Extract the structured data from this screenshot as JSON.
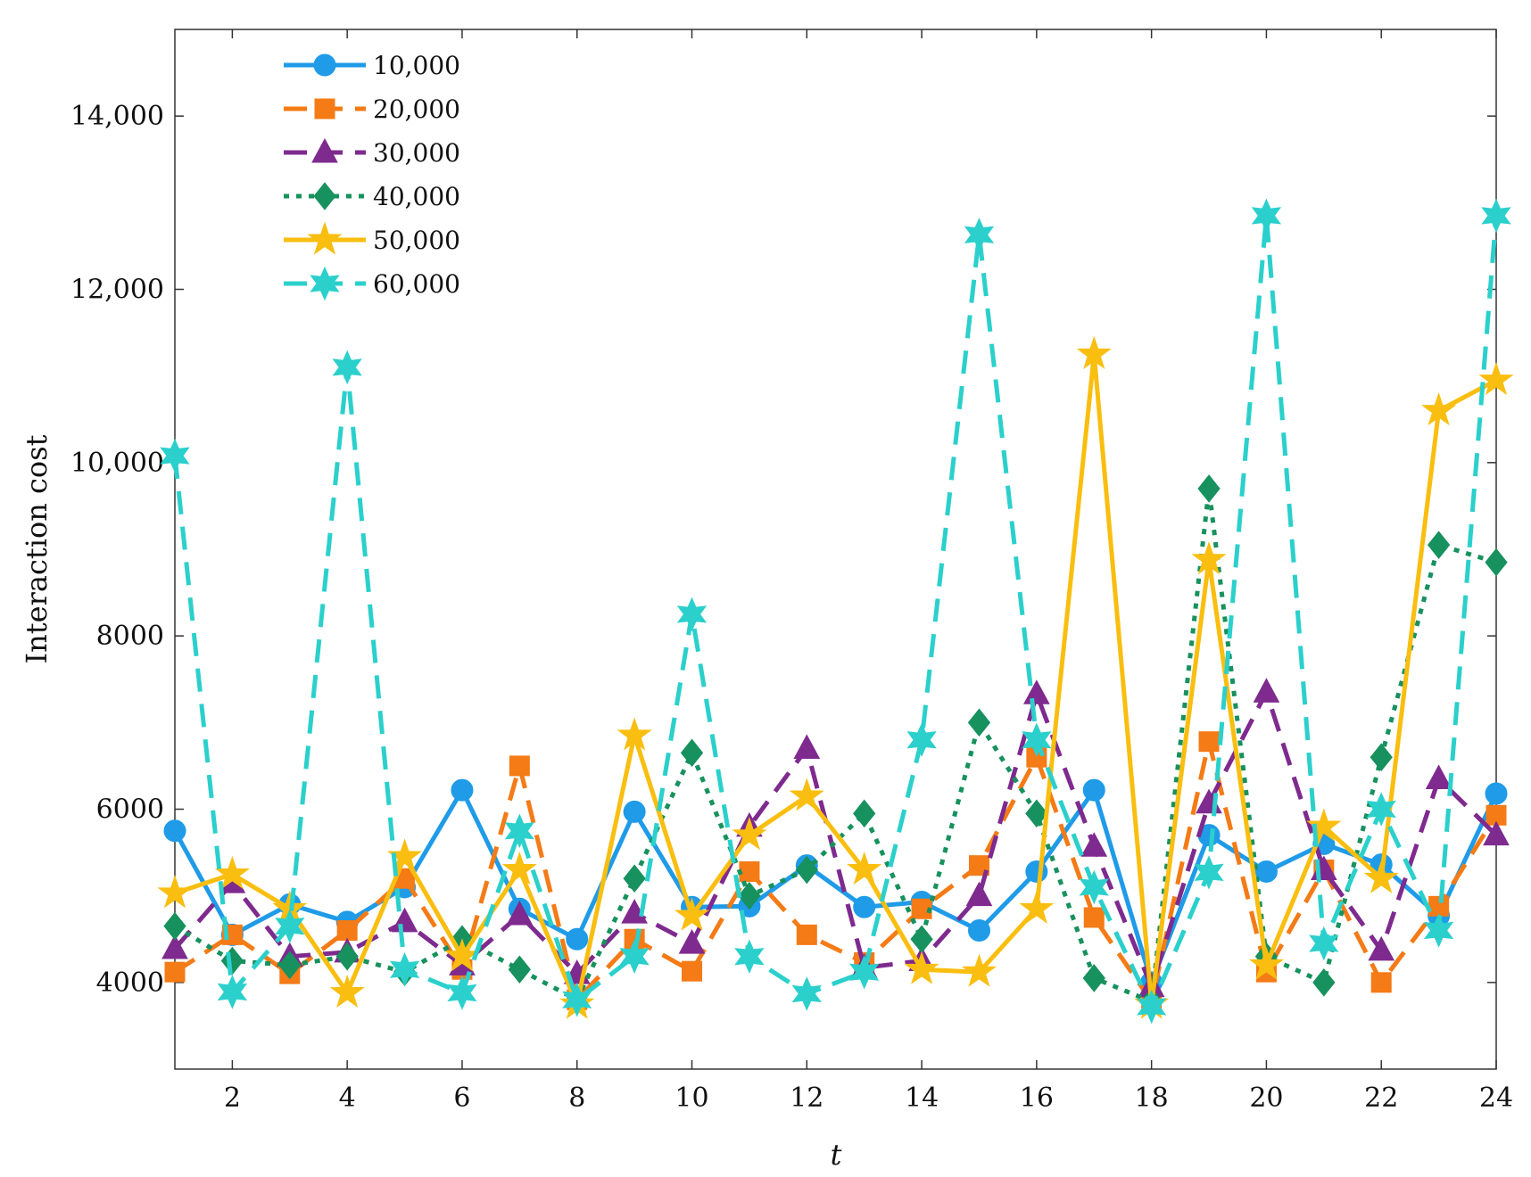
{
  "chart_data": {
    "type": "line",
    "title": "",
    "xlabel": "t",
    "ylabel": "Interaction cost",
    "x": [
      1,
      2,
      3,
      4,
      5,
      6,
      7,
      8,
      9,
      10,
      11,
      12,
      13,
      14,
      15,
      16,
      17,
      18,
      19,
      20,
      21,
      22,
      23,
      24
    ],
    "xlim": [
      1,
      24
    ],
    "ylim": [
      3000,
      15000
    ],
    "xticks": [
      2,
      4,
      6,
      8,
      10,
      12,
      14,
      16,
      18,
      20,
      22,
      24
    ],
    "xtick_labels": [
      "2",
      "4",
      "6",
      "8",
      "10",
      "12",
      "14",
      "16",
      "18",
      "20",
      "22",
      "24"
    ],
    "yticks": [
      4000,
      6000,
      8000,
      10000,
      12000,
      14000
    ],
    "ytick_labels": [
      "4000",
      "6000",
      "8000",
      "10,000",
      "12,000",
      "14,000"
    ],
    "grid": false,
    "legend_position": "top-left",
    "series": [
      {
        "name": "10,000",
        "color": "#1f9be8",
        "dash": "solid",
        "marker": "circle",
        "values": [
          5750,
          4550,
          4900,
          4700,
          5100,
          6220,
          4850,
          4500,
          5970,
          4870,
          4880,
          5350,
          4870,
          4930,
          4600,
          5280,
          6220,
          4000,
          5700,
          5280,
          5600,
          5360,
          4770,
          6180
        ]
      },
      {
        "name": "20,000",
        "color": "#f47b16",
        "dash": "dashed",
        "marker": "square",
        "values": [
          4120,
          4550,
          4100,
          4600,
          5200,
          4150,
          6500,
          3800,
          4500,
          4130,
          5280,
          4550,
          4230,
          4850,
          5350,
          6600,
          4750,
          3780,
          6780,
          4120,
          5300,
          4000,
          4880,
          5930
        ]
      },
      {
        "name": "30,000",
        "color": "#7e2a8e",
        "dash": "dashed",
        "marker": "triangle",
        "values": [
          4390,
          5150,
          4300,
          4350,
          4700,
          4200,
          4780,
          4100,
          4800,
          4450,
          5800,
          6700,
          4170,
          4250,
          5000,
          7330,
          5570,
          3950,
          6070,
          7350,
          5300,
          4370,
          6350,
          5700
        ]
      },
      {
        "name": "40,000",
        "color": "#17915e",
        "dash": "dotted",
        "marker": "diamond",
        "values": [
          4650,
          4250,
          4200,
          4300,
          4120,
          4500,
          4150,
          3800,
          5200,
          6650,
          5000,
          5300,
          5950,
          4500,
          7000,
          5950,
          4050,
          3780,
          9700,
          4300,
          4000,
          6600,
          9050,
          8850
        ]
      },
      {
        "name": "50,000",
        "color": "#f9be0f",
        "dash": "solid",
        "marker": "star",
        "values": [
          5030,
          5250,
          4850,
          3880,
          5450,
          4300,
          5300,
          3750,
          6850,
          4770,
          5700,
          6150,
          5300,
          4150,
          4120,
          4850,
          11250,
          3750,
          8880,
          4200,
          5800,
          5200,
          10600,
          10950
        ]
      },
      {
        "name": "60,000",
        "color": "#2bd0cc",
        "dash": "dashed",
        "marker": "hexstar",
        "values": [
          10080,
          3890,
          4650,
          11100,
          4150,
          3880,
          5750,
          3800,
          4300,
          8250,
          4300,
          3870,
          4120,
          6800,
          12630,
          6800,
          5100,
          3720,
          5270,
          12850,
          4450,
          6000,
          4600,
          12850
        ]
      }
    ]
  }
}
